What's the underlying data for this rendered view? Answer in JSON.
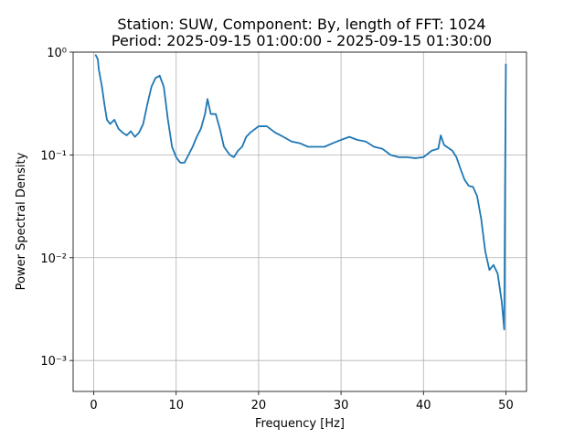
{
  "chart_data": {
    "type": "line",
    "title": "Station: SUW, Component: By, length of FFT: 1024",
    "subtitle": "Period: 2025-09-15 01:00:00 - 2025-09-15 01:30:00",
    "x_label": "Frequency [Hz]",
    "y_label": "Power Spectral Density",
    "x": [
      0.2,
      0.5,
      0.6,
      1.0,
      1.3,
      1.6,
      2.0,
      2.5,
      3.0,
      3.5,
      4.0,
      4.5,
      5.0,
      5.5,
      6.0,
      6.5,
      7.0,
      7.5,
      8.0,
      8.5,
      9.0,
      9.5,
      10.0,
      10.5,
      11.0,
      11.5,
      12.0,
      12.5,
      13.0,
      13.5,
      13.8,
      14.2,
      14.8,
      15.3,
      15.8,
      16.5,
      17.0,
      17.5,
      18.0,
      18.5,
      19.0,
      20.0,
      21.0,
      22.0,
      23.0,
      24.0,
      25.0,
      26.0,
      27.0,
      28.0,
      29.0,
      30.0,
      31.0,
      32.0,
      33.0,
      34.0,
      35.0,
      36.0,
      37.0,
      38.0,
      39.0,
      40.0,
      41.0,
      41.8,
      42.1,
      42.5,
      43.5,
      44.0,
      44.5,
      45.0,
      45.5,
      46.0,
      46.5,
      47.0,
      47.5,
      48.0,
      48.5,
      49.0,
      49.5,
      49.8,
      49.9,
      50.0
    ],
    "values": [
      0.95,
      0.85,
      0.69,
      0.46,
      0.31,
      0.22,
      0.2,
      0.22,
      0.18,
      0.165,
      0.155,
      0.17,
      0.15,
      0.165,
      0.2,
      0.31,
      0.46,
      0.56,
      0.59,
      0.46,
      0.22,
      0.12,
      0.095,
      0.084,
      0.084,
      0.1,
      0.12,
      0.15,
      0.18,
      0.25,
      0.35,
      0.25,
      0.25,
      0.18,
      0.12,
      0.1,
      0.095,
      0.11,
      0.12,
      0.15,
      0.165,
      0.19,
      0.19,
      0.165,
      0.15,
      0.135,
      0.13,
      0.12,
      0.12,
      0.12,
      0.13,
      0.14,
      0.15,
      0.14,
      0.135,
      0.12,
      0.115,
      0.1,
      0.095,
      0.095,
      0.093,
      0.095,
      0.11,
      0.115,
      0.155,
      0.125,
      0.11,
      0.095,
      0.073,
      0.057,
      0.05,
      0.049,
      0.04,
      0.024,
      0.0115,
      0.0076,
      0.0085,
      0.007,
      0.0037,
      0.002,
      0.053,
      0.77
    ],
    "color": "#1f77b4",
    "xlim": [
      -2.5,
      52.5
    ],
    "xticks": [
      0,
      10,
      20,
      30,
      40,
      50
    ],
    "ylim": [
      0.0005,
      1
    ],
    "y_log": true,
    "yticks": [
      {
        "value": 0.001,
        "label": "10⁻³"
      },
      {
        "value": 0.01,
        "label": "10⁻²"
      },
      {
        "value": 0.1,
        "label": "10⁻¹"
      },
      {
        "value": 1,
        "label": "10⁰"
      }
    ],
    "grid": true
  }
}
